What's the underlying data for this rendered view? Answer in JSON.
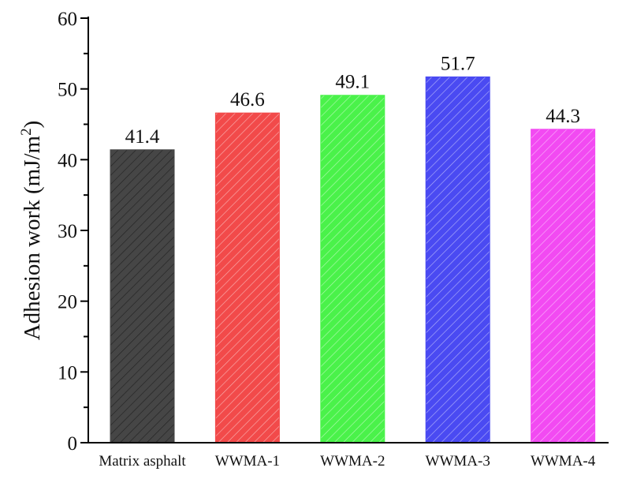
{
  "chart_data": {
    "type": "bar",
    "title": "",
    "xlabel": "",
    "ylabel": "Adhesion work (mJ/m²)",
    "ylabel_parts": {
      "main": "Adhesion work (mJ/m",
      "sup": "2",
      "end": ")"
    },
    "categories": [
      "Matrix asphalt",
      "WWMA-1",
      "WWMA-2",
      "WWMA-3",
      "WWMA-4"
    ],
    "values": [
      41.4,
      46.6,
      49.1,
      51.7,
      44.3
    ],
    "value_labels": [
      "41.4",
      "46.6",
      "49.1",
      "51.7",
      "44.3"
    ],
    "colors": [
      "#464646",
      "#f24a4a",
      "#4af24a",
      "#4a4af2",
      "#f24af2"
    ],
    "pattern": "diagonal-hatch",
    "ylim": [
      0,
      60
    ],
    "yticks": [
      0,
      10,
      20,
      30,
      40,
      50,
      60
    ],
    "ytick_labels": [
      "0",
      "10",
      "20",
      "30",
      "40",
      "50",
      "60"
    ],
    "minor_ticks": true,
    "grid": false,
    "legend": null
  }
}
